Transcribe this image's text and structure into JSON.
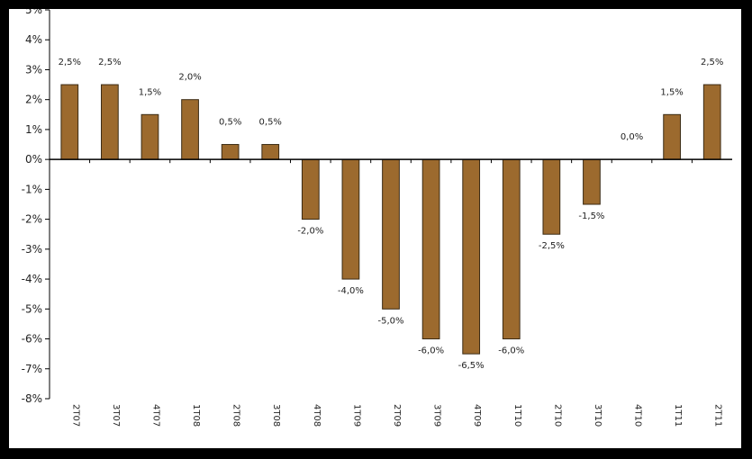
{
  "chart_data": {
    "type": "bar",
    "title": "",
    "xlabel": "",
    "ylabel": "",
    "categories": [
      "2T07",
      "3T07",
      "4T07",
      "1T08",
      "2T08",
      "3T08",
      "4T08",
      "1T09",
      "2T09",
      "3T09",
      "4T09",
      "1T10",
      "2T10",
      "3T10",
      "4T10",
      "1T11",
      "2T11"
    ],
    "values": [
      2.5,
      2.5,
      1.5,
      2.0,
      0.5,
      0.5,
      -2.0,
      -4.0,
      -5.0,
      -6.0,
      -6.5,
      -6.0,
      -2.5,
      -1.5,
      0.0,
      1.5,
      2.5
    ],
    "data_labels": [
      "2,5%",
      "2,5%",
      "1,5%",
      "2,0%",
      "0,5%",
      "0,5%",
      "-2,0%",
      "-4,0%",
      "-5,0%",
      "-6,0%",
      "-6,5%",
      "-6,0%",
      "-2,5%",
      "-1,5%",
      "0,0%",
      "1,5%",
      "2,5%"
    ],
    "ylim": [
      -8,
      5
    ],
    "yticks": [
      5,
      4,
      3,
      2,
      1,
      0,
      -1,
      -2,
      -3,
      -4,
      -5,
      -6,
      -7,
      -8
    ],
    "ytick_labels": [
      "5%",
      "4%",
      "3%",
      "2%",
      "1%",
      "0%",
      "-1%",
      "-2%",
      "-3%",
      "-4%",
      "-5%",
      "-6%",
      "-7%",
      "-8%"
    ],
    "grid": false,
    "legend": "none",
    "bar_color": "#9c6a2e",
    "bar_edge_color": "#3a2a14",
    "axis_color": "#000000"
  }
}
